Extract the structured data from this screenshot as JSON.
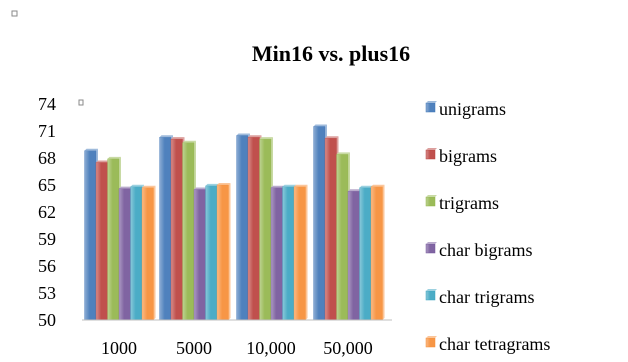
{
  "chart_data": {
    "type": "bar",
    "title": "Min16 vs. plus16",
    "xlabel": "",
    "ylabel": "",
    "categories": [
      "1000",
      "5000",
      "10,000",
      "50,000"
    ],
    "ylim": [
      50,
      74
    ],
    "yticks": [
      50,
      53,
      56,
      59,
      62,
      65,
      68,
      71,
      74
    ],
    "grid": false,
    "legend_position": "right",
    "series": [
      {
        "name": "unigrams",
        "color": "#4f81bd",
        "values": [
          68.8,
          70.3,
          70.5,
          71.5
        ]
      },
      {
        "name": "bigrams",
        "color": "#c0504d",
        "values": [
          67.5,
          70.1,
          70.3,
          70.2
        ]
      },
      {
        "name": "trigrams",
        "color": "#9bbb59",
        "values": [
          67.9,
          69.7,
          70.1,
          68.4
        ]
      },
      {
        "name": "char bigrams",
        "color": "#8064a2",
        "values": [
          64.6,
          64.5,
          64.7,
          64.3
        ]
      },
      {
        "name": "char trigrams",
        "color": "#4bacc6",
        "values": [
          64.8,
          64.9,
          64.8,
          64.7
        ]
      },
      {
        "name": "char tetragrams",
        "color": "#f79646",
        "values": [
          64.7,
          65.0,
          64.8,
          64.8
        ]
      }
    ]
  }
}
